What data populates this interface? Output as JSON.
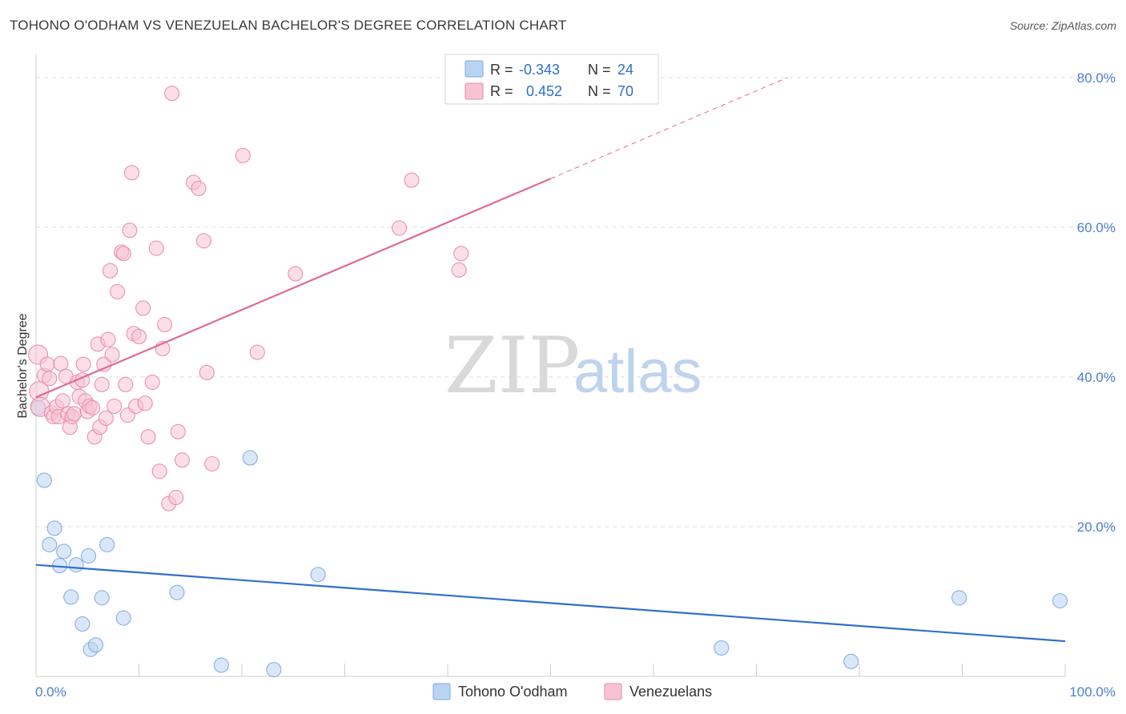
{
  "title": "TOHONO O'ODHAM VS VENEZUELAN BACHELOR'S DEGREE CORRELATION CHART",
  "source": "Source: ZipAtlas.com",
  "watermark": {
    "zip": "ZIP",
    "atlas": "atlas"
  },
  "colors": {
    "blue_fill": "#b9d3f3",
    "blue_stroke": "#7fa9e0",
    "blue_line": "#2f6fcc",
    "pink_fill": "#f7c3d3",
    "pink_stroke": "#e88aa7",
    "pink_line": "#e06a92",
    "tick_text": "#4a7fd0",
    "grid": "#dddddd"
  },
  "stats": [
    {
      "r_label": "R =",
      "r_value": "-0.343",
      "n_label": "N =",
      "n_value": "24",
      "series": "blue"
    },
    {
      "r_label": "R =",
      "r_value": "0.452",
      "n_label": "N =",
      "n_value": "70",
      "series": "pink"
    }
  ],
  "chart_data": {
    "type": "scatter",
    "ylabel": "Bachelor's Degree",
    "xlim": [
      0,
      100
    ],
    "ylim": [
      0,
      80
    ],
    "x_tick_labels": {
      "min": "0.0%",
      "max": "100.0%"
    },
    "y_ticks": [
      {
        "value": 20,
        "label": "20.0%"
      },
      {
        "value": 40,
        "label": "40.0%"
      },
      {
        "value": 60,
        "label": "60.0%"
      },
      {
        "value": 80,
        "label": "80.0%"
      }
    ],
    "grid": true,
    "series": [
      {
        "name": "Tohono O'odham",
        "key": "blue",
        "trend": {
          "x0": 0,
          "y0": 14.9,
          "x1": 100,
          "y1": 4.7
        },
        "points": [
          [
            0.2,
            35.9
          ],
          [
            0.8,
            26.2
          ],
          [
            1.3,
            17.6
          ],
          [
            1.8,
            19.8
          ],
          [
            2.3,
            14.8
          ],
          [
            2.7,
            16.7
          ],
          [
            3.4,
            10.6
          ],
          [
            3.9,
            14.9
          ],
          [
            4.5,
            7.0
          ],
          [
            5.1,
            16.1
          ],
          [
            5.3,
            3.6
          ],
          [
            5.8,
            4.2
          ],
          [
            6.4,
            10.5
          ],
          [
            6.9,
            17.6
          ],
          [
            8.5,
            7.8
          ],
          [
            13.7,
            11.2
          ],
          [
            18.0,
            1.5
          ],
          [
            20.8,
            29.2
          ],
          [
            23.1,
            0.9
          ],
          [
            27.4,
            13.6
          ],
          [
            66.6,
            3.8
          ],
          [
            79.2,
            2.0
          ],
          [
            89.7,
            10.5
          ],
          [
            99.5,
            10.1
          ]
        ]
      },
      {
        "name": "Venezuelans",
        "key": "pink",
        "trend": {
          "x0": 0,
          "y0": 37.3,
          "x1": 50,
          "y1": 66.5,
          "dash_x1": 73,
          "dash_y1": 80
        },
        "points": [
          [
            0.2,
            43.0
          ],
          [
            0.3,
            38.1
          ],
          [
            0.4,
            36.0
          ],
          [
            0.8,
            40.2
          ],
          [
            1.1,
            41.7
          ],
          [
            1.3,
            39.8
          ],
          [
            1.5,
            35.2
          ],
          [
            1.7,
            34.7
          ],
          [
            2.0,
            36.0
          ],
          [
            2.2,
            34.7
          ],
          [
            2.4,
            41.8
          ],
          [
            2.6,
            36.8
          ],
          [
            2.9,
            40.1
          ],
          [
            3.1,
            35.1
          ],
          [
            3.3,
            33.3
          ],
          [
            3.5,
            34.7
          ],
          [
            3.7,
            35.1
          ],
          [
            4.0,
            39.3
          ],
          [
            4.2,
            37.4
          ],
          [
            4.5,
            39.6
          ],
          [
            4.6,
            41.7
          ],
          [
            4.8,
            36.8
          ],
          [
            5.0,
            35.4
          ],
          [
            5.2,
            36.1
          ],
          [
            5.5,
            35.9
          ],
          [
            5.7,
            32.0
          ],
          [
            6.0,
            44.4
          ],
          [
            6.2,
            33.3
          ],
          [
            6.4,
            39.0
          ],
          [
            6.6,
            41.7
          ],
          [
            6.8,
            34.5
          ],
          [
            7.0,
            45.0
          ],
          [
            7.2,
            54.2
          ],
          [
            7.4,
            43.0
          ],
          [
            7.6,
            36.1
          ],
          [
            7.9,
            51.4
          ],
          [
            8.3,
            56.7
          ],
          [
            8.5,
            56.5
          ],
          [
            8.7,
            39.0
          ],
          [
            8.9,
            34.9
          ],
          [
            9.1,
            59.6
          ],
          [
            9.3,
            67.3
          ],
          [
            9.5,
            45.8
          ],
          [
            9.7,
            36.1
          ],
          [
            10.0,
            45.4
          ],
          [
            10.4,
            49.2
          ],
          [
            10.6,
            36.5
          ],
          [
            10.9,
            32.0
          ],
          [
            11.3,
            39.3
          ],
          [
            11.7,
            57.2
          ],
          [
            12.0,
            27.4
          ],
          [
            12.3,
            43.8
          ],
          [
            12.5,
            47.0
          ],
          [
            12.9,
            23.1
          ],
          [
            13.2,
            77.9
          ],
          [
            13.6,
            23.9
          ],
          [
            13.8,
            32.7
          ],
          [
            14.2,
            28.9
          ],
          [
            15.3,
            66.0
          ],
          [
            15.8,
            65.2
          ],
          [
            16.3,
            58.2
          ],
          [
            16.6,
            40.6
          ],
          [
            17.1,
            28.4
          ],
          [
            20.1,
            69.6
          ],
          [
            21.5,
            43.3
          ],
          [
            25.2,
            53.8
          ],
          [
            35.3,
            59.9
          ],
          [
            36.5,
            66.3
          ],
          [
            41.1,
            54.3
          ],
          [
            41.3,
            56.5
          ]
        ]
      }
    ]
  }
}
